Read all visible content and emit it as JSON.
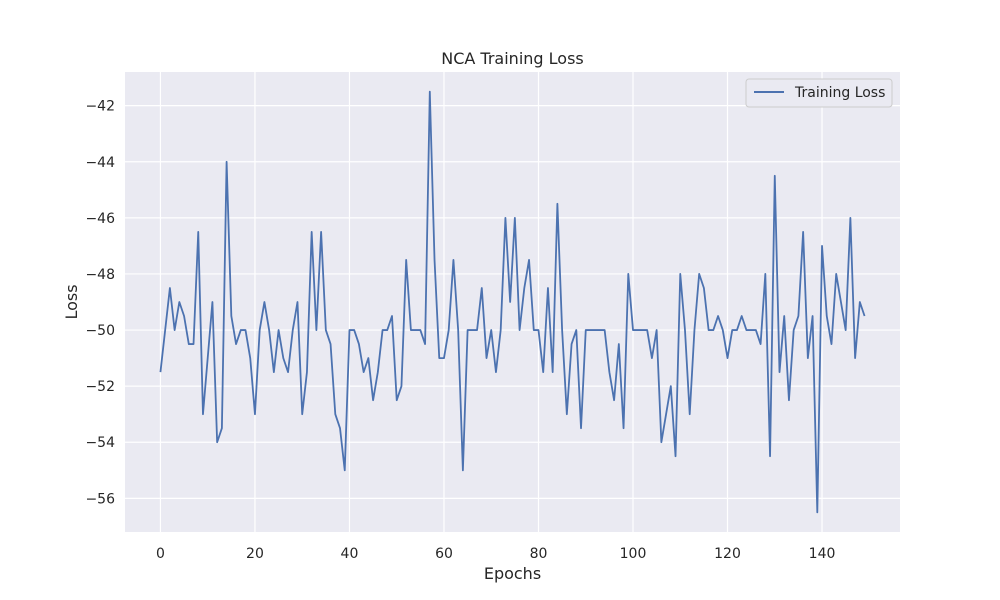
{
  "chart_data": {
    "type": "line",
    "title": "NCA Training Loss",
    "xlabel": "Epochs",
    "ylabel": "Loss",
    "xlim": [
      -7.5,
      156.5
    ],
    "ylim": [
      -57.2,
      -40.8
    ],
    "xticks": [
      0,
      20,
      40,
      60,
      80,
      100,
      120,
      140
    ],
    "yticks": [
      -56,
      -54,
      -52,
      -50,
      -48,
      -46,
      -44,
      -42
    ],
    "xtick_labels": [
      "0",
      "20",
      "40",
      "60",
      "80",
      "100",
      "120",
      "140"
    ],
    "ytick_labels": [
      "−56",
      "−54",
      "−52",
      "−50",
      "−48",
      "−46",
      "−44",
      "−42"
    ],
    "grid": true,
    "legend_position": "top-right",
    "series": [
      {
        "name": "Training Loss",
        "color": "#4c72b0",
        "x": [
          0,
          1,
          2,
          3,
          4,
          5,
          6,
          7,
          8,
          9,
          10,
          11,
          12,
          13,
          14,
          15,
          16,
          17,
          18,
          19,
          20,
          21,
          22,
          23,
          24,
          25,
          26,
          27,
          28,
          29,
          30,
          31,
          32,
          33,
          34,
          35,
          36,
          37,
          38,
          39,
          40,
          41,
          42,
          43,
          44,
          45,
          46,
          47,
          48,
          49,
          50,
          51,
          52,
          53,
          54,
          55,
          56,
          57,
          58,
          59,
          60,
          61,
          62,
          63,
          64,
          65,
          66,
          67,
          68,
          69,
          70,
          71,
          72,
          73,
          74,
          75,
          76,
          77,
          78,
          79,
          80,
          81,
          82,
          83,
          84,
          85,
          86,
          87,
          88,
          89,
          90,
          91,
          92,
          93,
          94,
          95,
          96,
          97,
          98,
          99,
          100,
          101,
          102,
          103,
          104,
          105,
          106,
          107,
          108,
          109,
          110,
          111,
          112,
          113,
          114,
          115,
          116,
          117,
          118,
          119,
          120,
          121,
          122,
          123,
          124,
          125,
          126,
          127,
          128,
          129,
          130,
          131,
          132,
          133,
          134,
          135,
          136,
          137,
          138,
          139,
          140,
          141,
          142,
          143,
          144,
          145,
          146,
          147,
          148,
          149
        ],
        "values": [
          -51.5,
          -50,
          -48.5,
          -50,
          -49,
          -49.5,
          -50.5,
          -50.5,
          -46.5,
          -53,
          -51,
          -49,
          -54,
          -53.5,
          -44,
          -49.5,
          -50.5,
          -50,
          -50,
          -51,
          -53,
          -50,
          -49,
          -50,
          -51.5,
          -50,
          -51,
          -51.5,
          -50,
          -49,
          -53,
          -51.5,
          -46.5,
          -50,
          -46.5,
          -50,
          -50.5,
          -53,
          -53.5,
          -55,
          -50,
          -50,
          -50.5,
          -51.5,
          -51,
          -52.5,
          -51.5,
          -50,
          -50,
          -49.5,
          -52.5,
          -52,
          -47.5,
          -50,
          -50,
          -50,
          -50.5,
          -41.5,
          -47.5,
          -51,
          -51,
          -50,
          -47.5,
          -50,
          -55,
          -50,
          -50,
          -50,
          -48.5,
          -51,
          -50,
          -51.5,
          -50,
          -46,
          -49,
          -46,
          -50,
          -48.5,
          -47.5,
          -50,
          -50,
          -51.5,
          -48.5,
          -51.5,
          -45.5,
          -50,
          -53,
          -50.5,
          -50,
          -53.5,
          -50,
          -50,
          -50,
          -50,
          -50,
          -51.5,
          -52.5,
          -50.5,
          -53.5,
          -48,
          -50,
          -50,
          -50,
          -50,
          -51,
          -50,
          -54,
          -53,
          -52,
          -54.5,
          -48,
          -50,
          -53,
          -50,
          -48,
          -48.5,
          -50,
          -50,
          -49.5,
          -50,
          -51,
          -50,
          -50,
          -49.5,
          -50,
          -50,
          -50,
          -50.5,
          -48,
          -54.5,
          -44.5,
          -51.5,
          -49.5,
          -52.5,
          -50,
          -49.5,
          -46.5,
          -51,
          -49.5,
          -56.5,
          -47,
          -49.5,
          -50.5,
          -48,
          -49,
          -50,
          -46,
          -51,
          -49,
          -49.5
        ]
      }
    ]
  }
}
